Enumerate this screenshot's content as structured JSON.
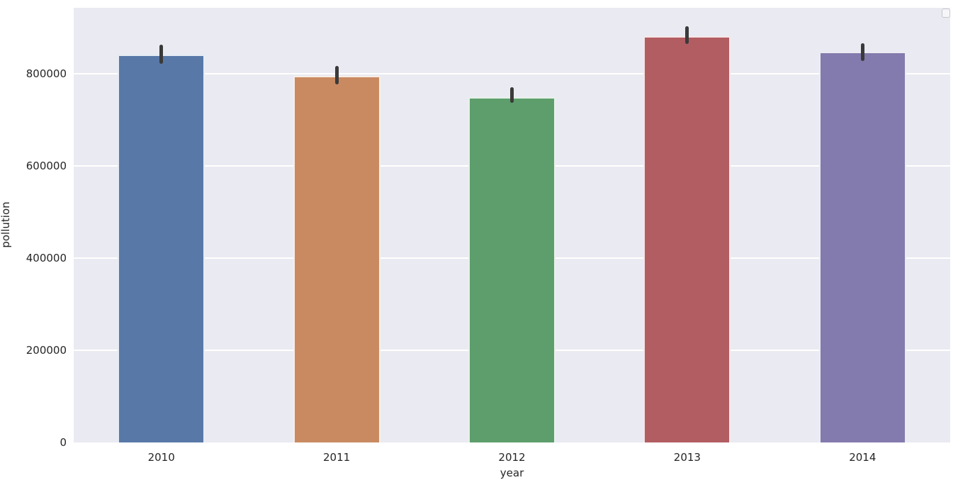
{
  "chart_data": {
    "type": "bar",
    "title": "",
    "xlabel": "year",
    "ylabel": "pollution",
    "categories": [
      "2010",
      "2011",
      "2012",
      "2013",
      "2014"
    ],
    "values": [
      842000,
      795000,
      749000,
      882000,
      848000
    ],
    "error_low": [
      822000,
      777000,
      737000,
      864000,
      828000
    ],
    "error_high": [
      863000,
      817000,
      771000,
      903000,
      866000
    ],
    "bar_colors": [
      "#5878a8",
      "#c98a62",
      "#5d9e6c",
      "#b25d62",
      "#837aad"
    ],
    "yticks": [
      0,
      200000,
      400000,
      600000,
      800000
    ],
    "ytick_labels": [
      "0",
      "200000",
      "400000",
      "600000",
      "800000"
    ],
    "ylim": [
      0,
      943000
    ],
    "grid": true,
    "legend_position": "upper right",
    "legend_entries": [],
    "colors": {
      "plot_background": "#eaeaf2",
      "gridline": "#ffffff",
      "errorbar": "#3a3a3a",
      "text": "#262626",
      "figure_background": "#ffffff"
    }
  }
}
